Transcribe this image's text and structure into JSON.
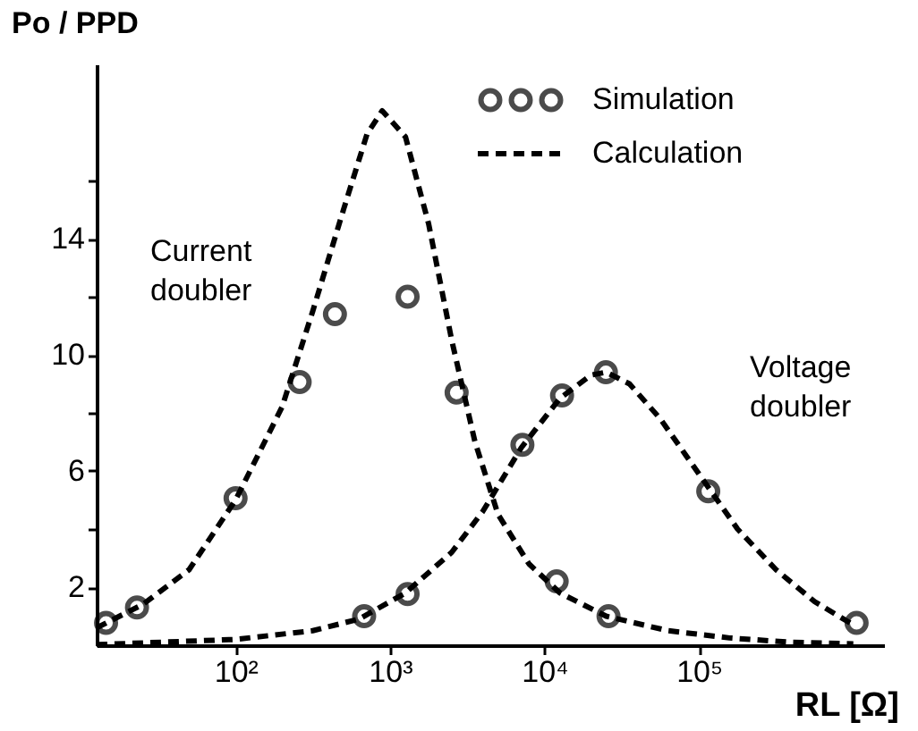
{
  "chart_data": {
    "type": "line",
    "xlabel": "RL [Ω]",
    "ylabel": "Po / PPD",
    "log": "x",
    "grid": false,
    "legend": "top right",
    "xlim": [
      12.6,
      1580000
    ],
    "ylim": [
      0,
      20
    ],
    "xticks": [
      {
        "value": 100,
        "label": "10²"
      },
      {
        "value": 1000,
        "label": "10³"
      },
      {
        "value": 10000,
        "label": "10⁴"
      },
      {
        "value": 100000,
        "label": "10⁵"
      }
    ],
    "yticks": [
      2,
      {
        "value": 4,
        "label": null
      },
      6,
      {
        "value": 8,
        "label": null
      },
      10,
      {
        "value": 12,
        "label": null
      },
      14,
      {
        "value": 16,
        "label": null
      }
    ],
    "series": [
      {
        "name": "Simulation",
        "type": "scatter",
        "marker": "circle",
        "color": "#000000",
        "x": [
          14.5,
          23,
          100,
          260,
          440,
          1300,
          2700,
          12000,
          26000
        ],
        "values": [
          0.77,
          1.3,
          5.06,
          9.06,
          11.4,
          12.0,
          8.7,
          2.2,
          1.0
        ]
      },
      {
        "name": "Calculation",
        "line_style": "dashed",
        "color": "#000000",
        "x": [
          12.6,
          25,
          50,
          100,
          200,
          316,
          500,
          710,
          890,
          1260,
          1780,
          2510,
          3550,
          5010,
          7940,
          12600,
          25100,
          63100,
          158000,
          398000,
          1000000
        ],
        "values": [
          0.6,
          1.4,
          2.6,
          5.0,
          8.2,
          11.5,
          15,
          17.6,
          18.4,
          17.5,
          14.5,
          10.5,
          7.0,
          4.5,
          2.8,
          1.8,
          1.0,
          0.5,
          0.25,
          0.1,
          0.05
        ]
      },
      {
        "type": "scatter",
        "marker": "circle",
        "color": "#000000",
        "x": [
          680,
          1300,
          7200,
          13000,
          25000,
          115000,
          1050000
        ],
        "values": [
          1.0,
          1.76,
          6.9,
          8.6,
          9.4,
          5.3,
          0.77
        ]
      },
      {
        "line_style": "dashed",
        "color": "#000000",
        "x": [
          12.6,
          100,
          316,
          630,
          1260,
          2510,
          3980,
          7080,
          12600,
          20000,
          25100,
          35500,
          56200,
          100000,
          178000,
          316000,
          562000,
          1000000
        ],
        "values": [
          0.02,
          0.2,
          0.5,
          0.9,
          1.8,
          3.2,
          4.6,
          6.8,
          8.5,
          9.3,
          9.4,
          9.0,
          7.8,
          5.9,
          4.0,
          2.6,
          1.5,
          0.7
        ]
      }
    ],
    "annotations": [
      "Current doubler",
      "Voltage doubler"
    ]
  }
}
